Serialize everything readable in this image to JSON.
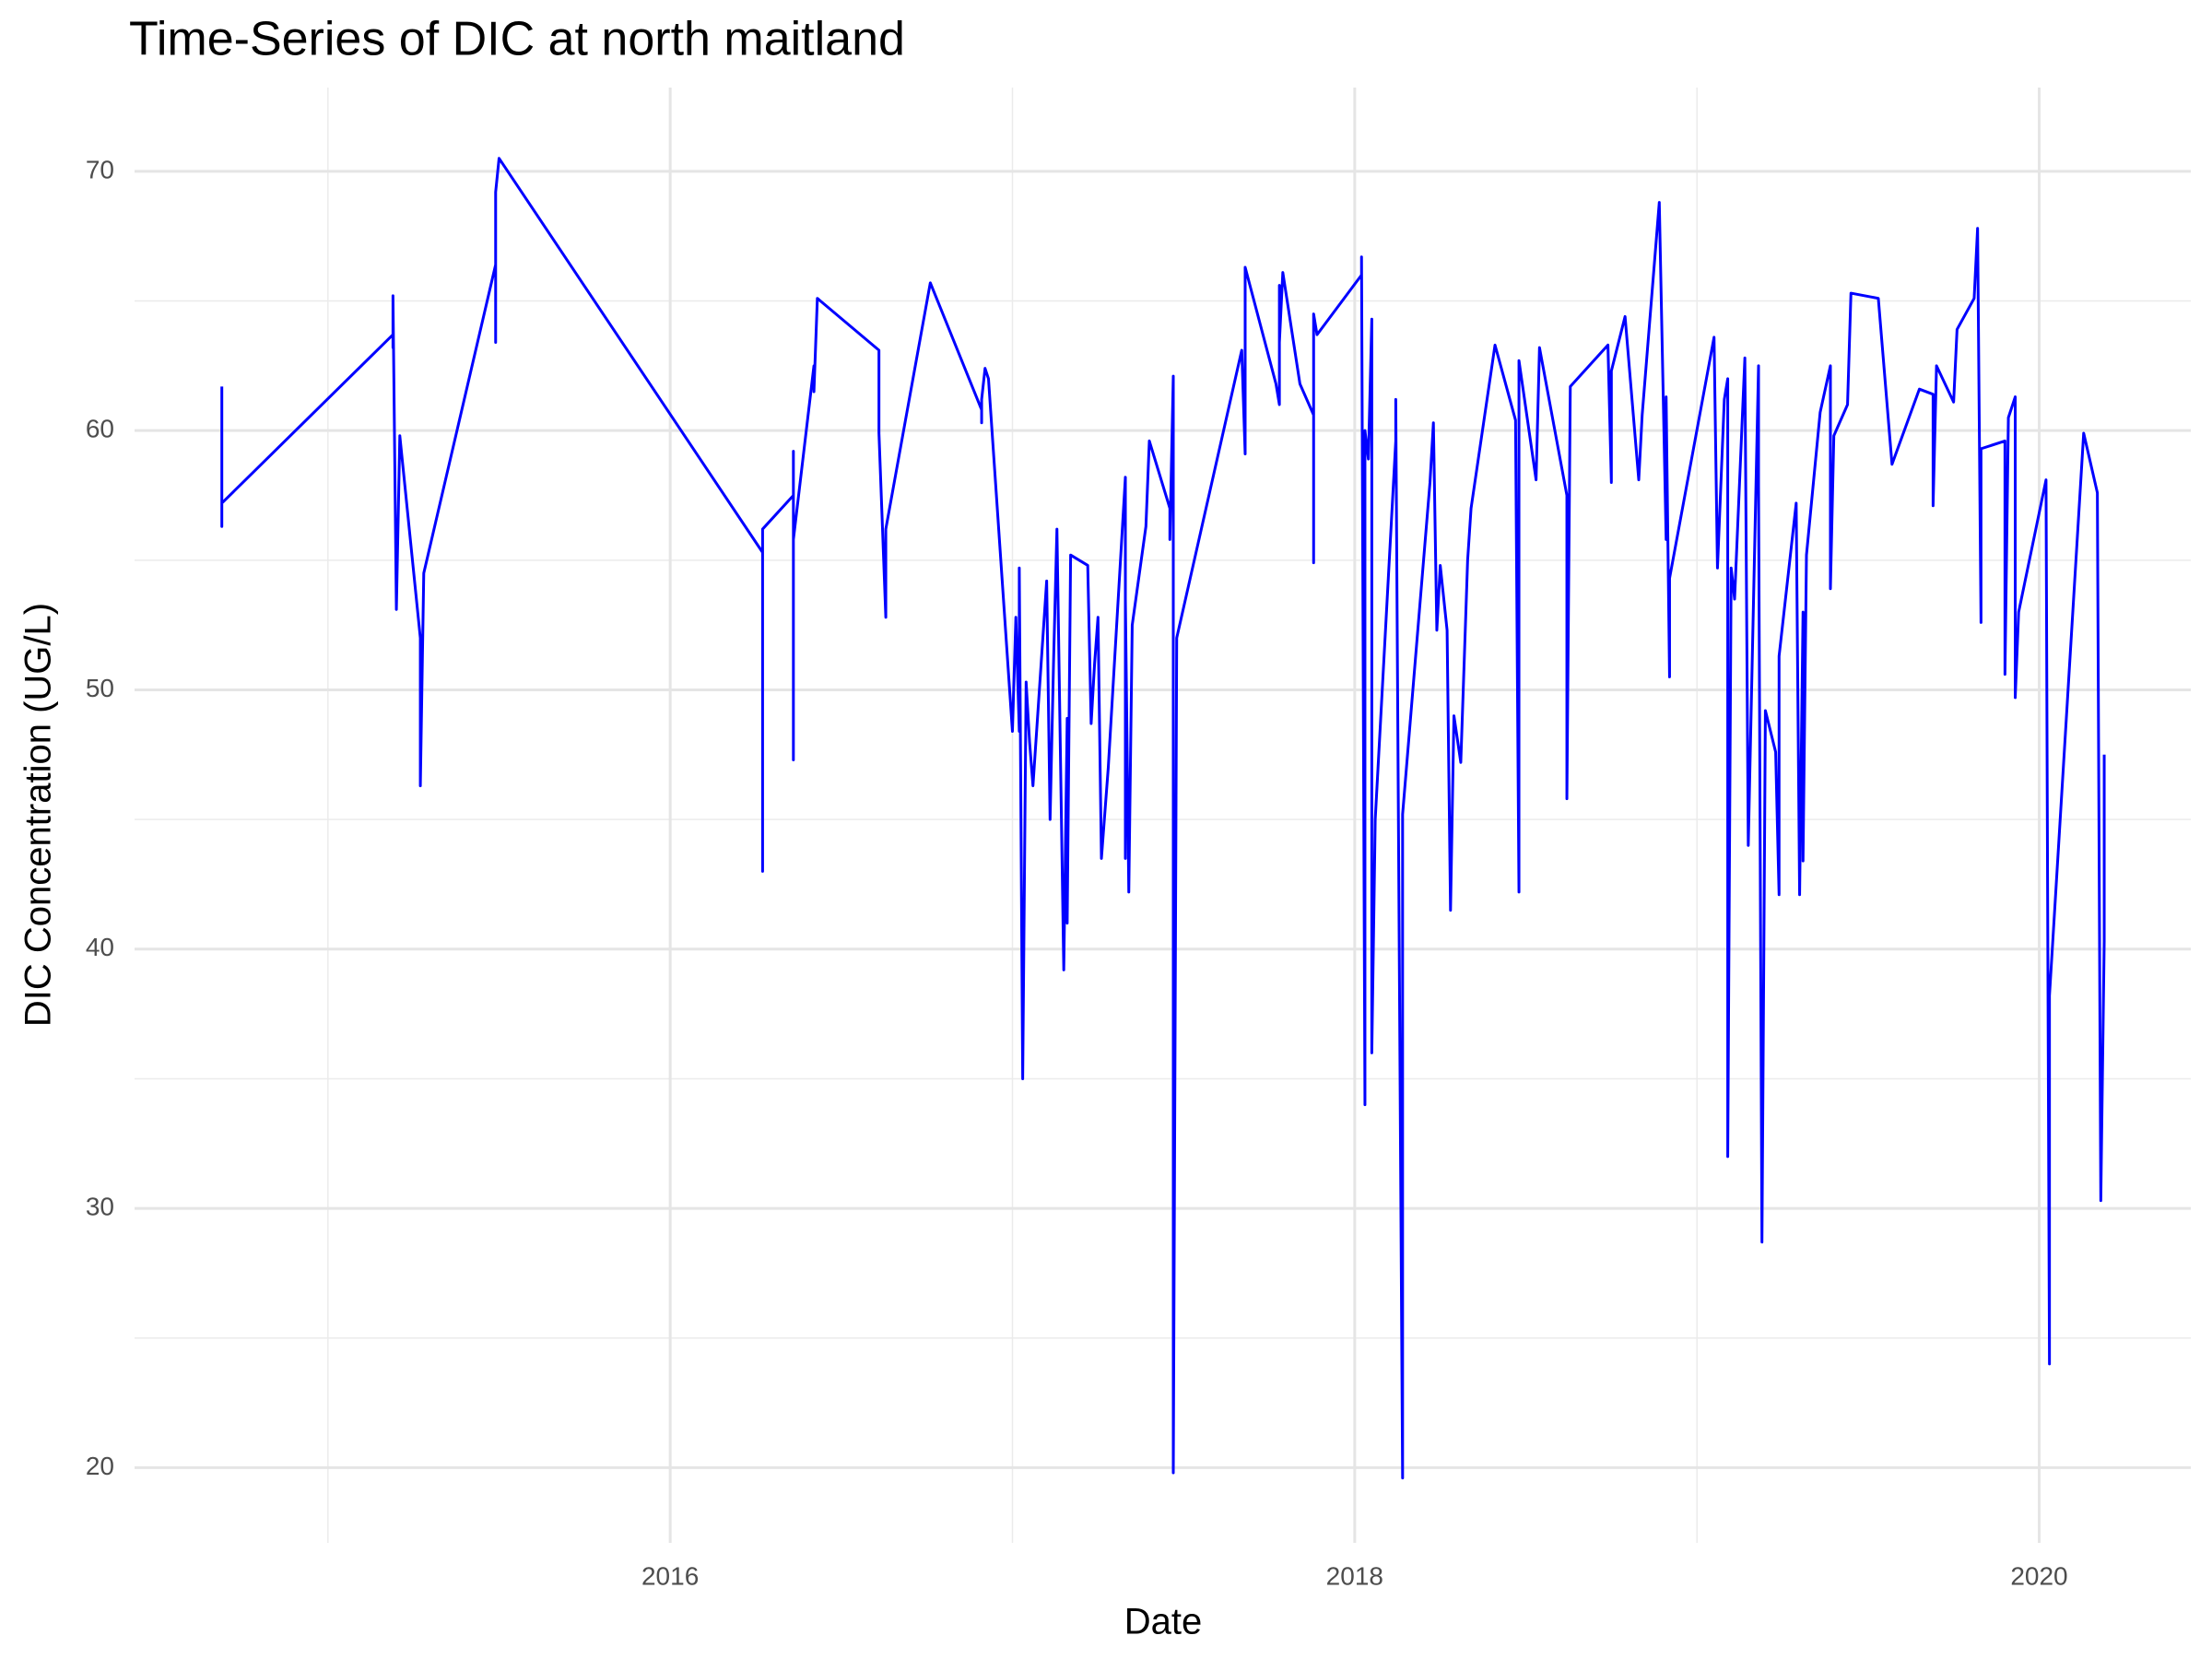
{
  "chart_data": {
    "type": "line",
    "title": "Time-Series of DIC at north maitland",
    "x_label": "Date",
    "y_label": "DIC Concentration (UG/L)",
    "xlim": [
      2014.435,
      2020.443
    ],
    "xticks": [
      2016,
      2018,
      2020
    ],
    "ylim": [
      17.1,
      73.23
    ],
    "yticks": [
      20,
      30,
      40,
      50,
      60,
      70
    ],
    "grid": true,
    "series": [
      {
        "name": "DIC",
        "color": "#0000ff",
        "x": [
          2014.69,
          2014.69,
          2014.69,
          2015.19,
          2015.19,
          2015.19,
          2015.19,
          2015.2,
          2015.21,
          2015.27,
          2015.27,
          2015.28,
          2015.49,
          2015.49,
          2015.49,
          2015.5,
          2016.27,
          2016.27,
          2016.27,
          2016.27,
          2016.27,
          2016.36,
          2016.36,
          2016.36,
          2016.36,
          2016.42,
          2016.42,
          2016.43,
          2016.61,
          2016.61,
          2016.63,
          2016.63,
          2016.76,
          2016.91,
          2016.91,
          2016.91,
          2016.92,
          2016.93,
          2017.0,
          2017.01,
          2017.02,
          2017.02,
          2017.03,
          2017.04,
          2017.05,
          2017.06,
          2017.1,
          2017.11,
          2017.12,
          2017.13,
          2017.15,
          2017.16,
          2017.16,
          2017.17,
          2017.22,
          2017.23,
          2017.24,
          2017.25,
          2017.26,
          2017.28,
          2017.33,
          2017.33,
          2017.33,
          2017.34,
          2017.35,
          2017.39,
          2017.4,
          2017.46,
          2017.46,
          2017.47,
          2017.47,
          2017.48,
          2017.67,
          2017.68,
          2017.68,
          2017.77,
          2017.78,
          2017.78,
          2017.78,
          2017.79,
          2017.84,
          2017.88,
          2017.88,
          2017.88,
          2017.89,
          2018.02,
          2018.02,
          2018.03,
          2018.03,
          2018.04,
          2018.05,
          2018.05,
          2018.06,
          2018.12,
          2018.12,
          2018.14,
          2018.14,
          2018.22,
          2018.23,
          2018.24,
          2018.25,
          2018.27,
          2018.28,
          2018.29,
          2018.31,
          2018.33,
          2018.34,
          2018.41,
          2018.47,
          2018.48,
          2018.48,
          2018.53,
          2018.54,
          2018.62,
          2018.62,
          2018.63,
          2018.74,
          2018.75,
          2018.75,
          2018.79,
          2018.83,
          2018.84,
          2018.89,
          2018.91,
          2018.91,
          2018.92,
          2018.92,
          2019.05,
          2019.06,
          2019.08,
          2019.09,
          2019.09,
          2019.1,
          2019.11,
          2019.14,
          2019.15,
          2019.18,
          2019.18,
          2019.19,
          2019.2,
          2019.23,
          2019.24,
          2019.24,
          2019.29,
          2019.3,
          2019.31,
          2019.31,
          2019.32,
          2019.36,
          2019.39,
          2019.39,
          2019.4,
          2019.44,
          2019.45,
          2019.53,
          2019.57,
          2019.65,
          2019.69,
          2019.69,
          2019.7,
          2019.75,
          2019.76,
          2019.81,
          2019.82,
          2019.83,
          2019.83,
          2019.9,
          2019.9,
          2019.91,
          2019.93,
          2019.93,
          2019.94,
          2020.02,
          2020.03,
          2020.03,
          2020.13,
          2020.17,
          2020.18,
          2020.19,
          2020.19
        ],
        "values": [
          61.7,
          56.3,
          57.2,
          63.7,
          64.3,
          63.2,
          65.2,
          53.1,
          59.8,
          52,
          46.3,
          54.5,
          66.4,
          63.4,
          69.2,
          70.5,
          55.3,
          43,
          56.2,
          55.5,
          56.2,
          57.5,
          47.3,
          59.2,
          55.8,
          62.5,
          61.5,
          65.1,
          63.1,
          59.9,
          52.8,
          56.2,
          65.7,
          60.8,
          60.3,
          61.2,
          62.4,
          62,
          48.4,
          52.8,
          48.4,
          54.7,
          35,
          50.3,
          48,
          46.3,
          54.2,
          45,
          51,
          56.2,
          39.2,
          48.9,
          41,
          55.2,
          54.8,
          48.7,
          51,
          52.8,
          43.5,
          47,
          58.2,
          43.5,
          53.5,
          42.2,
          52.5,
          56.3,
          59.6,
          57,
          55.8,
          62.1,
          19.8,
          52,
          63.1,
          59.1,
          66.3,
          61.8,
          61,
          65.6,
          63.4,
          66.1,
          61.8,
          60.6,
          54.9,
          64.5,
          63.7,
          66,
          66.7,
          34,
          60,
          58.9,
          64.3,
          36,
          45,
          59.6,
          61.2,
          19.6,
          45.2,
          58,
          60.3,
          52.3,
          54.8,
          52.3,
          41.5,
          49,
          47.2,
          55,
          57,
          63.3,
          60.4,
          42.2,
          62.7,
          58.1,
          63.2,
          57.5,
          45.8,
          61.7,
          63.3,
          58,
          62.3,
          64.4,
          58.1,
          60.6,
          68.8,
          55.8,
          61.3,
          50.5,
          54.3,
          63.6,
          54.7,
          61.2,
          62,
          32,
          54.7,
          53.5,
          62.8,
          44,
          62.5,
          57.9,
          28.7,
          49.2,
          47.6,
          42.1,
          51.3,
          57.2,
          42.1,
          53,
          43.4,
          55.2,
          60.7,
          62.5,
          53.9,
          59.8,
          61,
          65.3,
          65.1,
          58.7,
          61.6,
          61.4,
          57.1,
          62.5,
          61.1,
          63.9,
          65.1,
          67.8,
          52.6,
          59.3,
          59.6,
          50.6,
          60.5,
          61.3,
          49.7,
          53,
          58.1,
          24,
          38.2,
          59.9,
          57.6,
          30.3,
          40.3,
          47.5
        ]
      }
    ]
  }
}
